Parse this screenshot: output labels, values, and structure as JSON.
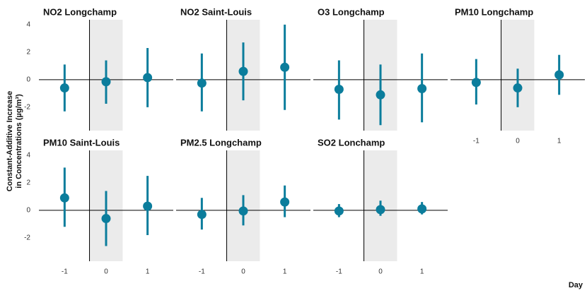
{
  "ylabel": [
    "Constant-Additive Increase",
    "in Concentrations (µg/m³)"
  ],
  "xlabel": "Day",
  "chart_data": [
    {
      "type": "pointrange",
      "title": "NO2 Longchamp",
      "color": "#0b7d9c",
      "x": [
        -1,
        0,
        1
      ],
      "values": [
        -0.6,
        -0.15,
        0.15
      ],
      "lower": [
        -2.3,
        -1.75,
        -2.0
      ],
      "upper": [
        1.1,
        1.4,
        2.3
      ],
      "xlim": [
        -1.62,
        1.62
      ],
      "ylim": [
        -3.7,
        4.35
      ],
      "yticks": [
        -2,
        0,
        2,
        4
      ],
      "shade": [
        -0.4,
        0.4
      ],
      "vline": -0.4,
      "hline": 0
    },
    {
      "type": "pointrange",
      "title": "NO2 Saint-Louis",
      "color": "#0b7d9c",
      "x": [
        -1,
        0,
        1
      ],
      "values": [
        -0.25,
        0.6,
        0.9
      ],
      "lower": [
        -2.3,
        -1.5,
        -2.2
      ],
      "upper": [
        1.9,
        2.7,
        4.0
      ],
      "xlim": [
        -1.62,
        1.62
      ],
      "ylim": [
        -3.7,
        4.35
      ],
      "shade": [
        -0.4,
        0.4
      ],
      "vline": -0.4,
      "hline": 0
    },
    {
      "type": "pointrange",
      "title": "O3 Longchamp",
      "color": "#0b7d9c",
      "x": [
        -1,
        0,
        1
      ],
      "values": [
        -0.7,
        -1.1,
        -0.65
      ],
      "lower": [
        -2.9,
        -3.3,
        -3.1
      ],
      "upper": [
        1.4,
        1.1,
        1.9
      ],
      "xlim": [
        -1.62,
        1.62
      ],
      "ylim": [
        -3.7,
        4.35
      ],
      "shade": [
        -0.4,
        0.4
      ],
      "vline": -0.4,
      "hline": 0
    },
    {
      "type": "pointrange",
      "title": "PM10 Longchamp",
      "color": "#0b7d9c",
      "x": [
        -1,
        0,
        1
      ],
      "values": [
        -0.2,
        -0.6,
        0.35
      ],
      "lower": [
        -1.8,
        -2.0,
        -1.1
      ],
      "upper": [
        1.5,
        0.8,
        1.8
      ],
      "xlim": [
        -1.62,
        1.62
      ],
      "ylim": [
        -3.7,
        4.35
      ],
      "xticks": [
        -1,
        0,
        1
      ],
      "shade": [
        -0.4,
        0.4
      ],
      "vline": -0.4,
      "hline": 0
    },
    {
      "type": "pointrange",
      "title": "PM10 Saint-Louis",
      "color": "#0b7d9c",
      "x": [
        -1,
        0,
        1
      ],
      "values": [
        0.9,
        -0.6,
        0.3
      ],
      "lower": [
        -1.2,
        -2.6,
        -1.8
      ],
      "upper": [
        3.1,
        1.4,
        2.5
      ],
      "xlim": [
        -1.62,
        1.62
      ],
      "ylim": [
        -3.7,
        4.35
      ],
      "yticks": [
        -2,
        0,
        2,
        4
      ],
      "xticks": [
        -1,
        0,
        1
      ],
      "shade": [
        -0.4,
        0.4
      ],
      "vline": -0.4,
      "hline": 0
    },
    {
      "type": "pointrange",
      "title": "PM2.5 Longchamp",
      "color": "#0b7d9c",
      "x": [
        -1,
        0,
        1
      ],
      "values": [
        -0.3,
        -0.05,
        0.6
      ],
      "lower": [
        -1.4,
        -1.1,
        -0.5
      ],
      "upper": [
        0.9,
        1.1,
        1.8
      ],
      "xlim": [
        -1.62,
        1.62
      ],
      "ylim": [
        -3.7,
        4.35
      ],
      "xticks": [
        -1,
        0,
        1
      ],
      "shade": [
        -0.4,
        0.4
      ],
      "vline": -0.4,
      "hline": 0
    },
    {
      "type": "pointrange",
      "title": "SO2 Lonchamp",
      "color": "#0b7d9c",
      "x": [
        -1,
        0,
        1
      ],
      "values": [
        -0.05,
        0.05,
        0.1
      ],
      "lower": [
        -0.5,
        -0.4,
        -0.3
      ],
      "upper": [
        0.45,
        0.7,
        0.6
      ],
      "xlim": [
        -1.62,
        1.62
      ],
      "ylim": [
        -3.7,
        4.35
      ],
      "xticks": [
        -1,
        0,
        1
      ],
      "shade": [
        -0.4,
        0.4
      ],
      "vline": -0.4,
      "hline": 0
    }
  ]
}
